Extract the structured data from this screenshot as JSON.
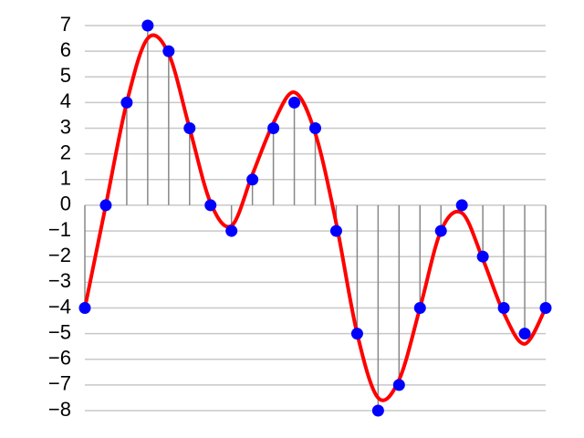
{
  "chart_data": {
    "type": "line",
    "categories": [
      null,
      null,
      null,
      null,
      null,
      null,
      null,
      null,
      null,
      null,
      null,
      null,
      null,
      null,
      null,
      null,
      null,
      null,
      null,
      null,
      null,
      null,
      null
    ],
    "series": [
      {
        "color": "#ff0000",
        "smooth": true,
        "values": [
          -4,
          0,
          4,
          6.5,
          5.9,
          3,
          0.1,
          -0.8,
          1.2,
          3.2,
          4.4,
          2.8,
          -0.7,
          -5,
          -7.5,
          -6.8,
          -4,
          -1,
          -0.3,
          -2.1,
          -4.2,
          -5.4,
          -4
        ]
      },
      {
        "color": "#0000ff",
        "markers": true,
        "stems": true,
        "values": [
          -4,
          0,
          4,
          7,
          6,
          3,
          0,
          -1,
          1,
          3,
          4,
          3,
          -1,
          -5,
          -8,
          -7,
          -4,
          -1,
          0,
          -2,
          -4,
          -5,
          -4
        ]
      }
    ],
    "ylim": [
      -8,
      7
    ],
    "yticks": [
      7,
      6,
      5,
      4,
      3,
      2,
      1,
      0,
      {
        "value": -1,
        "label": "−1"
      },
      {
        "value": -2,
        "label": "−2"
      },
      {
        "value": -3,
        "label": "−3"
      },
      {
        "value": -4,
        "label": "−4"
      },
      {
        "value": -5,
        "label": "−5"
      },
      {
        "value": -6,
        "label": "−6"
      },
      {
        "value": -7,
        "label": "−7"
      },
      {
        "value": -8,
        "label": "−8"
      }
    ],
    "grid": true
  }
}
